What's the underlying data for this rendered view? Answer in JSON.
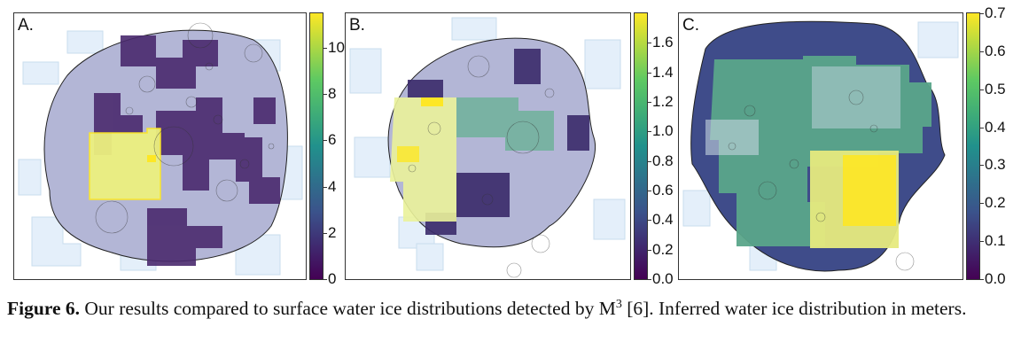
{
  "figure": {
    "panels": [
      {
        "label": "A.",
        "colorbar": {
          "min": 0,
          "max": 11.5,
          "ticks": [
            "0",
            "2",
            "4",
            "6",
            "8",
            "10"
          ],
          "tick_values": [
            0,
            2,
            4,
            6,
            8,
            10
          ]
        }
      },
      {
        "label": "B.",
        "colorbar": {
          "min": 0,
          "max": 1.8,
          "ticks": [
            "0.0",
            "0.2",
            "0.4",
            "0.6",
            "0.8",
            "1.0",
            "1.2",
            "1.4",
            "1.6"
          ],
          "tick_values": [
            0,
            0.2,
            0.4,
            0.6,
            0.8,
            1.0,
            1.2,
            1.4,
            1.6
          ]
        }
      },
      {
        "label": "C.",
        "colorbar": {
          "min": 0,
          "max": 0.7,
          "ticks": [
            "0.0",
            "0.1",
            "0.2",
            "0.3",
            "0.4",
            "0.5",
            "0.6",
            "0.7"
          ],
          "tick_values": [
            0,
            0.1,
            0.2,
            0.3,
            0.4,
            0.5,
            0.6,
            0.7
          ]
        }
      }
    ],
    "colormap": [
      "#440154",
      "#3b528b",
      "#21918c",
      "#5ec962",
      "#fde725"
    ],
    "caption": {
      "label": "Figure 6.",
      "text_before_superscript": " Our results compared to surface water ice distributions detected by M",
      "superscript": "3",
      "text_after_superscript": " [6]. Inferred water ice distribution in meters."
    }
  }
}
